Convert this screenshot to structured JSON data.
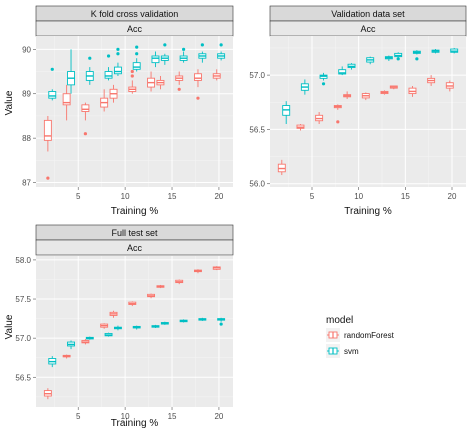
{
  "chart_data": [
    {
      "type": "box",
      "panel_title": "K fold cross validation",
      "strip_subtitle": "Acc",
      "xlabel": "Training %",
      "ylabel": "Value",
      "xlim": [
        0.5,
        21.5
      ],
      "ylim": [
        86.9,
        90.3
      ],
      "xticks": [
        5,
        10,
        15,
        20
      ],
      "yticks": [
        87,
        88,
        89,
        90
      ],
      "series": [
        {
          "name": "randomForest",
          "color": "#f8766d",
          "boxes": [
            {
              "x": 2,
              "min": 87.7,
              "q1": 87.95,
              "median": 88.05,
              "q3": 88.4,
              "max": 88.5,
              "outliers": [
                87.1
              ]
            },
            {
              "x": 4,
              "min": 88.4,
              "q1": 88.75,
              "median": 88.8,
              "q3": 89.0,
              "max": 89.2,
              "outliers": []
            },
            {
              "x": 6,
              "min": 88.4,
              "q1": 88.6,
              "median": 88.65,
              "q3": 88.75,
              "max": 88.8,
              "outliers": [
                88.1
              ]
            },
            {
              "x": 8,
              "min": 88.6,
              "q1": 88.7,
              "median": 88.8,
              "q3": 88.9,
              "max": 89.1,
              "outliers": []
            },
            {
              "x": 9,
              "min": 88.8,
              "q1": 88.9,
              "median": 89.0,
              "q3": 89.1,
              "max": 89.2,
              "outliers": []
            },
            {
              "x": 11,
              "min": 89.0,
              "q1": 89.05,
              "median": 89.1,
              "q3": 89.15,
              "max": 89.3,
              "outliers": [
                89.5,
                89.4
              ]
            },
            {
              "x": 13,
              "min": 89.05,
              "q1": 89.15,
              "median": 89.25,
              "q3": 89.35,
              "max": 89.5,
              "outliers": []
            },
            {
              "x": 14,
              "min": 89.1,
              "q1": 89.2,
              "median": 89.25,
              "q3": 89.3,
              "max": 89.4,
              "outliers": []
            },
            {
              "x": 16,
              "min": 89.2,
              "q1": 89.3,
              "median": 89.35,
              "q3": 89.4,
              "max": 89.5,
              "outliers": [
                89.1
              ]
            },
            {
              "x": 18,
              "min": 89.15,
              "q1": 89.3,
              "median": 89.35,
              "q3": 89.45,
              "max": 89.55,
              "outliers": [
                88.9
              ]
            },
            {
              "x": 20,
              "min": 89.3,
              "q1": 89.35,
              "median": 89.4,
              "q3": 89.45,
              "max": 89.55,
              "outliers": []
            }
          ]
        },
        {
          "name": "svm",
          "color": "#00bfc4",
          "boxes": [
            {
              "x": 2,
              "min": 88.85,
              "q1": 88.9,
              "median": 88.95,
              "q3": 89.05,
              "max": 89.1,
              "outliers": [
                89.55
              ]
            },
            {
              "x": 4,
              "min": 89.0,
              "q1": 89.2,
              "median": 89.35,
              "q3": 89.5,
              "max": 90.0,
              "outliers": []
            },
            {
              "x": 6,
              "min": 89.2,
              "q1": 89.3,
              "median": 89.4,
              "q3": 89.5,
              "max": 89.6,
              "outliers": [
                89.8
              ]
            },
            {
              "x": 8,
              "min": 89.3,
              "q1": 89.35,
              "median": 89.4,
              "q3": 89.5,
              "max": 89.6,
              "outliers": [
                89.85
              ]
            },
            {
              "x": 9,
              "min": 89.4,
              "q1": 89.45,
              "median": 89.5,
              "q3": 89.6,
              "max": 89.7,
              "outliers": [
                90.0,
                89.9
              ]
            },
            {
              "x": 11,
              "min": 89.5,
              "q1": 89.55,
              "median": 89.6,
              "q3": 89.7,
              "max": 89.8,
              "outliers": [
                90.05,
                89.9
              ]
            },
            {
              "x": 13,
              "min": 89.6,
              "q1": 89.7,
              "median": 89.8,
              "q3": 89.85,
              "max": 89.95,
              "outliers": []
            },
            {
              "x": 14,
              "min": 89.65,
              "q1": 89.75,
              "median": 89.8,
              "q3": 89.85,
              "max": 89.9,
              "outliers": [
                90.1
              ]
            },
            {
              "x": 16,
              "min": 89.7,
              "q1": 89.75,
              "median": 89.8,
              "q3": 89.85,
              "max": 89.95,
              "outliers": [
                90.0
              ]
            },
            {
              "x": 18,
              "min": 89.7,
              "q1": 89.8,
              "median": 89.85,
              "q3": 89.9,
              "max": 89.95,
              "outliers": [
                90.1
              ]
            },
            {
              "x": 20,
              "min": 89.75,
              "q1": 89.8,
              "median": 89.85,
              "q3": 89.9,
              "max": 89.95,
              "outliers": [
                90.1
              ]
            }
          ]
        }
      ]
    },
    {
      "type": "box",
      "panel_title": "Validation data set",
      "strip_subtitle": "Acc",
      "xlabel": "Training %",
      "ylabel": "",
      "xlim": [
        0.5,
        21.5
      ],
      "ylim": [
        55.97,
        57.36
      ],
      "xticks": [
        5,
        10,
        15,
        20
      ],
      "yticks": [
        56.0,
        56.5,
        57.0
      ],
      "ytick_labels": [
        "56.0",
        "56.5",
        "57.0"
      ],
      "series": [
        {
          "name": "randomForest",
          "color": "#f8766d",
          "boxes": [
            {
              "x": 2,
              "min": 56.08,
              "q1": 56.11,
              "median": 56.14,
              "q3": 56.18,
              "max": 56.22,
              "outliers": []
            },
            {
              "x": 4,
              "min": 56.49,
              "q1": 56.51,
              "median": 56.52,
              "q3": 56.54,
              "max": 56.55,
              "outliers": []
            },
            {
              "x": 6,
              "min": 56.55,
              "q1": 56.58,
              "median": 56.6,
              "q3": 56.63,
              "max": 56.66,
              "outliers": []
            },
            {
              "x": 8,
              "min": 56.68,
              "q1": 56.7,
              "median": 56.71,
              "q3": 56.72,
              "max": 56.73,
              "outliers": [
                56.57
              ]
            },
            {
              "x": 9,
              "min": 56.78,
              "q1": 56.8,
              "median": 56.81,
              "q3": 56.82,
              "max": 56.85,
              "outliers": []
            },
            {
              "x": 11,
              "min": 56.77,
              "q1": 56.79,
              "median": 56.81,
              "q3": 56.83,
              "max": 56.84,
              "outliers": []
            },
            {
              "x": 13,
              "min": 56.82,
              "q1": 56.83,
              "median": 56.84,
              "q3": 56.85,
              "max": 56.86,
              "outliers": []
            },
            {
              "x": 14,
              "min": 56.87,
              "q1": 56.88,
              "median": 56.89,
              "q3": 56.9,
              "max": 56.9,
              "outliers": []
            },
            {
              "x": 16,
              "min": 56.8,
              "q1": 56.83,
              "median": 56.85,
              "q3": 56.88,
              "max": 56.9,
              "outliers": []
            },
            {
              "x": 18,
              "min": 56.9,
              "q1": 56.93,
              "median": 56.95,
              "q3": 56.97,
              "max": 57.0,
              "outliers": []
            },
            {
              "x": 20,
              "min": 56.85,
              "q1": 56.88,
              "median": 56.9,
              "q3": 56.93,
              "max": 56.95,
              "outliers": []
            }
          ]
        },
        {
          "name": "svm",
          "color": "#00bfc4",
          "boxes": [
            {
              "x": 2,
              "min": 56.55,
              "q1": 56.63,
              "median": 56.68,
              "q3": 56.72,
              "max": 56.76,
              "outliers": []
            },
            {
              "x": 4,
              "min": 56.82,
              "q1": 56.86,
              "median": 56.89,
              "q3": 56.92,
              "max": 56.96,
              "outliers": []
            },
            {
              "x": 6,
              "min": 56.95,
              "q1": 56.97,
              "median": 56.99,
              "q3": 57.0,
              "max": 57.02,
              "outliers": [
                56.92
              ]
            },
            {
              "x": 8,
              "min": 57.0,
              "q1": 57.01,
              "median": 57.02,
              "q3": 57.05,
              "max": 57.08,
              "outliers": []
            },
            {
              "x": 9,
              "min": 57.05,
              "q1": 57.07,
              "median": 57.08,
              "q3": 57.1,
              "max": 57.11,
              "outliers": []
            },
            {
              "x": 11,
              "min": 57.1,
              "q1": 57.12,
              "median": 57.14,
              "q3": 57.16,
              "max": 57.17,
              "outliers": []
            },
            {
              "x": 13,
              "min": 57.13,
              "q1": 57.15,
              "median": 57.16,
              "q3": 57.17,
              "max": 57.18,
              "outliers": []
            },
            {
              "x": 14,
              "min": 57.15,
              "q1": 57.17,
              "median": 57.18,
              "q3": 57.2,
              "max": 57.21,
              "outliers": [
                57.15
              ]
            },
            {
              "x": 16,
              "min": 57.19,
              "q1": 57.2,
              "median": 57.21,
              "q3": 57.22,
              "max": 57.23,
              "outliers": [
                57.15
              ]
            },
            {
              "x": 18,
              "min": 57.2,
              "q1": 57.21,
              "median": 57.22,
              "q3": 57.23,
              "max": 57.24,
              "outliers": []
            },
            {
              "x": 20,
              "min": 57.2,
              "q1": 57.21,
              "median": 57.22,
              "q3": 57.24,
              "max": 57.25,
              "outliers": []
            }
          ]
        }
      ]
    },
    {
      "type": "box",
      "panel_title": "Full test set",
      "strip_subtitle": "Acc",
      "xlabel": "Training %",
      "ylabel": "Value",
      "xlim": [
        0.5,
        21.5
      ],
      "ylim": [
        56.12,
        58.05
      ],
      "xticks": [
        5,
        10,
        15,
        20
      ],
      "yticks": [
        56.5,
        57.0,
        57.5,
        58.0
      ],
      "ytick_labels": [
        "56.5",
        "57.0",
        "57.5",
        "58.0"
      ],
      "series": [
        {
          "name": "randomForest",
          "color": "#f8766d",
          "boxes": [
            {
              "x": 2,
              "min": 56.22,
              "q1": 56.26,
              "median": 56.29,
              "q3": 56.33,
              "max": 56.36,
              "outliers": []
            },
            {
              "x": 4,
              "min": 56.74,
              "q1": 56.76,
              "median": 56.77,
              "q3": 56.78,
              "max": 56.79,
              "outliers": []
            },
            {
              "x": 6,
              "min": 56.92,
              "q1": 56.94,
              "median": 56.95,
              "q3": 56.97,
              "max": 56.99,
              "outliers": []
            },
            {
              "x": 8,
              "min": 57.12,
              "q1": 57.14,
              "median": 57.16,
              "q3": 57.18,
              "max": 57.19,
              "outliers": []
            },
            {
              "x": 9,
              "min": 57.26,
              "q1": 57.29,
              "median": 57.31,
              "q3": 57.33,
              "max": 57.35,
              "outliers": []
            },
            {
              "x": 11,
              "min": 57.41,
              "q1": 57.43,
              "median": 57.44,
              "q3": 57.46,
              "max": 57.47,
              "outliers": []
            },
            {
              "x": 13,
              "min": 57.51,
              "q1": 57.53,
              "median": 57.54,
              "q3": 57.56,
              "max": 57.57,
              "outliers": []
            },
            {
              "x": 14,
              "min": 57.64,
              "q1": 57.65,
              "median": 57.66,
              "q3": 57.67,
              "max": 57.68,
              "outliers": []
            },
            {
              "x": 16,
              "min": 57.69,
              "q1": 57.71,
              "median": 57.72,
              "q3": 57.74,
              "max": 57.75,
              "outliers": []
            },
            {
              "x": 18,
              "min": 57.83,
              "q1": 57.85,
              "median": 57.86,
              "q3": 57.87,
              "max": 57.88,
              "outliers": []
            },
            {
              "x": 20,
              "min": 57.87,
              "q1": 57.88,
              "median": 57.9,
              "q3": 57.91,
              "max": 57.92,
              "outliers": []
            }
          ]
        },
        {
          "name": "svm",
          "color": "#00bfc4",
          "boxes": [
            {
              "x": 2,
              "min": 56.63,
              "q1": 56.67,
              "median": 56.7,
              "q3": 56.74,
              "max": 56.77,
              "outliers": []
            },
            {
              "x": 4,
              "min": 56.86,
              "q1": 56.9,
              "median": 56.92,
              "q3": 56.95,
              "max": 56.97,
              "outliers": []
            },
            {
              "x": 6,
              "min": 56.98,
              "q1": 56.99,
              "median": 57.0,
              "q3": 57.01,
              "max": 57.02,
              "outliers": []
            },
            {
              "x": 8,
              "min": 57.02,
              "q1": 57.03,
              "median": 57.04,
              "q3": 57.06,
              "max": 57.07,
              "outliers": []
            },
            {
              "x": 9,
              "min": 57.1,
              "q1": 57.12,
              "median": 57.13,
              "q3": 57.14,
              "max": 57.16,
              "outliers": []
            },
            {
              "x": 11,
              "min": 57.11,
              "q1": 57.13,
              "median": 57.14,
              "q3": 57.15,
              "max": 57.16,
              "outliers": []
            },
            {
              "x": 13,
              "min": 57.13,
              "q1": 57.14,
              "median": 57.15,
              "q3": 57.16,
              "max": 57.17,
              "outliers": []
            },
            {
              "x": 14,
              "min": 57.17,
              "q1": 57.18,
              "median": 57.19,
              "q3": 57.2,
              "max": 57.21,
              "outliers": []
            },
            {
              "x": 16,
              "min": 57.2,
              "q1": 57.21,
              "median": 57.22,
              "q3": 57.23,
              "max": 57.24,
              "outliers": []
            },
            {
              "x": 18,
              "min": 57.22,
              "q1": 57.23,
              "median": 57.24,
              "q3": 57.25,
              "max": 57.26,
              "outliers": []
            },
            {
              "x": 20,
              "min": 57.21,
              "q1": 57.23,
              "median": 57.24,
              "q3": 57.25,
              "max": 57.26,
              "outliers": [
                57.18
              ]
            }
          ]
        }
      ]
    }
  ],
  "legend": {
    "title": "model",
    "items": [
      {
        "label": "randomForest",
        "color": "#f8766d"
      },
      {
        "label": "svm",
        "color": "#00bfc4"
      }
    ],
    "placement": "bottom-right"
  }
}
